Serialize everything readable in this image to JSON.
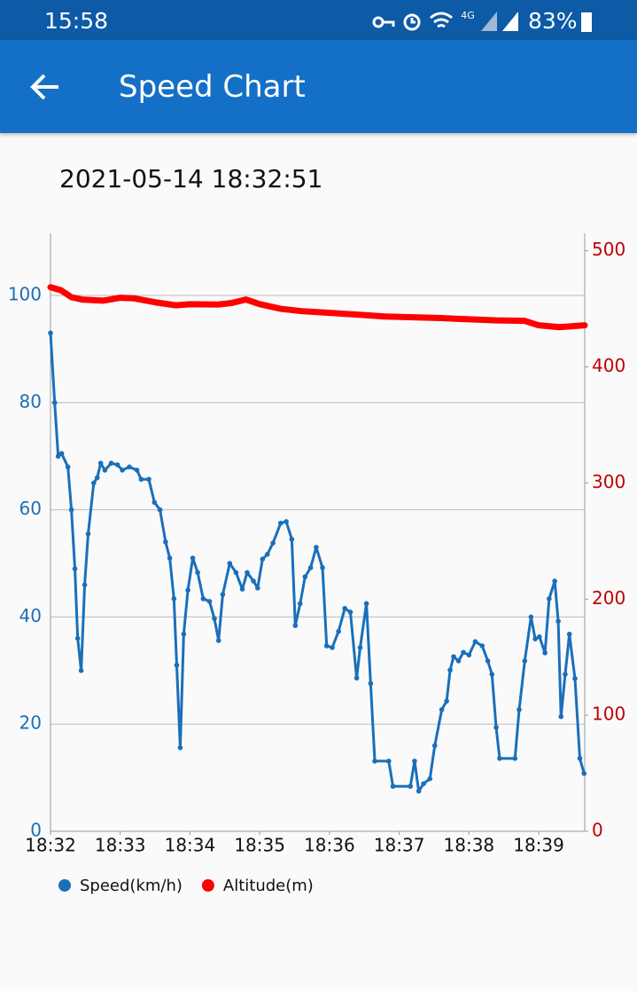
{
  "status_bar": {
    "time": "15:58",
    "network": "4G",
    "battery": "83%"
  },
  "app_bar": {
    "title": "Speed Chart"
  },
  "chart_data": {
    "type": "line",
    "subtitle": "2021-05-14 18:32:51",
    "xlim": [
      0,
      7.66
    ],
    "xticks": [
      {
        "value": 0,
        "label": "18:32"
      },
      {
        "value": 1,
        "label": "18:33"
      },
      {
        "value": 2,
        "label": "18:34"
      },
      {
        "value": 3,
        "label": "18:35"
      },
      {
        "value": 4,
        "label": "18:36"
      },
      {
        "value": 5,
        "label": "18:37"
      },
      {
        "value": 6,
        "label": "18:38"
      },
      {
        "value": 7,
        "label": "18:39"
      }
    ],
    "ylim": [
      0,
      111.6
    ],
    "yticks": [
      0,
      20,
      40,
      60,
      80,
      100
    ],
    "y2lim": [
      0,
      515
    ],
    "y2ticks": [
      0,
      100,
      200,
      300,
      400,
      500
    ],
    "grid": true,
    "legend": "bottom-left",
    "series": [
      {
        "name": "Speed(km/h)",
        "color": "#1a6fba",
        "markers": true,
        "x": [
          0,
          0.06,
          0.11,
          0.16,
          0.25,
          0.3,
          0.35,
          0.39,
          0.44,
          0.49,
          0.54,
          0.62,
          0.67,
          0.72,
          0.78,
          0.87,
          0.96,
          1.03,
          1.13,
          1.24,
          1.3,
          1.41,
          1.49,
          1.57,
          1.65,
          1.71,
          1.77,
          1.81,
          1.86,
          1.91,
          1.97,
          2.04,
          2.11,
          2.19,
          2.28,
          2.35,
          2.41,
          2.47,
          2.57,
          2.66,
          2.75,
          2.82,
          2.91,
          2.97,
          3.04,
          3.11,
          3.19,
          3.3,
          3.38,
          3.46,
          3.51,
          3.58,
          3.65,
          3.73,
          3.81,
          3.9,
          3.96,
          4.04,
          4.13,
          4.22,
          4.3,
          4.39,
          4.44,
          4.53,
          4.59,
          4.65,
          4.85,
          4.91,
          5.16,
          5.22,
          5.28,
          5.35,
          5.44,
          5.51,
          5.61,
          5.68,
          5.73,
          5.78,
          5.85,
          5.92,
          6.0,
          6.09,
          6.19,
          6.27,
          6.33,
          6.39,
          6.44,
          6.66,
          6.72,
          6.8,
          6.89,
          6.95,
          7.01,
          7.09,
          7.15,
          7.23,
          7.28,
          7.32,
          7.38,
          7.44,
          7.52,
          7.59,
          7.65
        ],
        "values": [
          93,
          80,
          70,
          70.5,
          68,
          60,
          49,
          36,
          30,
          46,
          55.5,
          65,
          66,
          68.7,
          67.4,
          68.7,
          68.4,
          67.4,
          68,
          67.4,
          65.7,
          65.7,
          61.4,
          60,
          54,
          51,
          43.4,
          31,
          15.6,
          36.8,
          45,
          51,
          48.3,
          43.4,
          42.9,
          39.7,
          35.6,
          44.2,
          50,
          48.3,
          45.2,
          48.3,
          46.7,
          45.4,
          50.8,
          51.7,
          53.8,
          57.5,
          57.8,
          54.5,
          38.4,
          42.5,
          47.5,
          49.2,
          53,
          49.2,
          34.6,
          34.3,
          37.3,
          41.6,
          40.9,
          28.6,
          34.3,
          42.5,
          27.6,
          13.1,
          13.1,
          8.4,
          8.4,
          13.1,
          7.5,
          8.9,
          9.8,
          16,
          22.7,
          24.3,
          30.1,
          32.6,
          31.8,
          33.4,
          32.9,
          35.4,
          34.6,
          31.8,
          29.3,
          19.4,
          13.6,
          13.6,
          22.7,
          31.8,
          40,
          35.9,
          36.3,
          33.3,
          43.4,
          46.7,
          39.2,
          21.4,
          29.3,
          36.8,
          28.5,
          13.6,
          10.8
        ]
      },
      {
        "name": "Altitude(m)",
        "color": "#ff0000",
        "axis": "y2",
        "markers": false,
        "x": [
          0,
          0.15,
          0.3,
          0.45,
          0.75,
          1.0,
          1.2,
          1.5,
          1.8,
          2.0,
          2.4,
          2.6,
          2.8,
          3.0,
          3.3,
          3.6,
          4.0,
          4.4,
          4.8,
          5.2,
          5.6,
          6.0,
          6.4,
          6.8,
          7.0,
          7.3,
          7.66
        ],
        "values": [
          468.6,
          466,
          460,
          458,
          457,
          459.5,
          459,
          455.6,
          453,
          454,
          453.7,
          455,
          458,
          454,
          450,
          448,
          446.5,
          445,
          443.4,
          442.7,
          442,
          441,
          440,
          439.6,
          435.8,
          434.2,
          435.8
        ]
      }
    ]
  }
}
